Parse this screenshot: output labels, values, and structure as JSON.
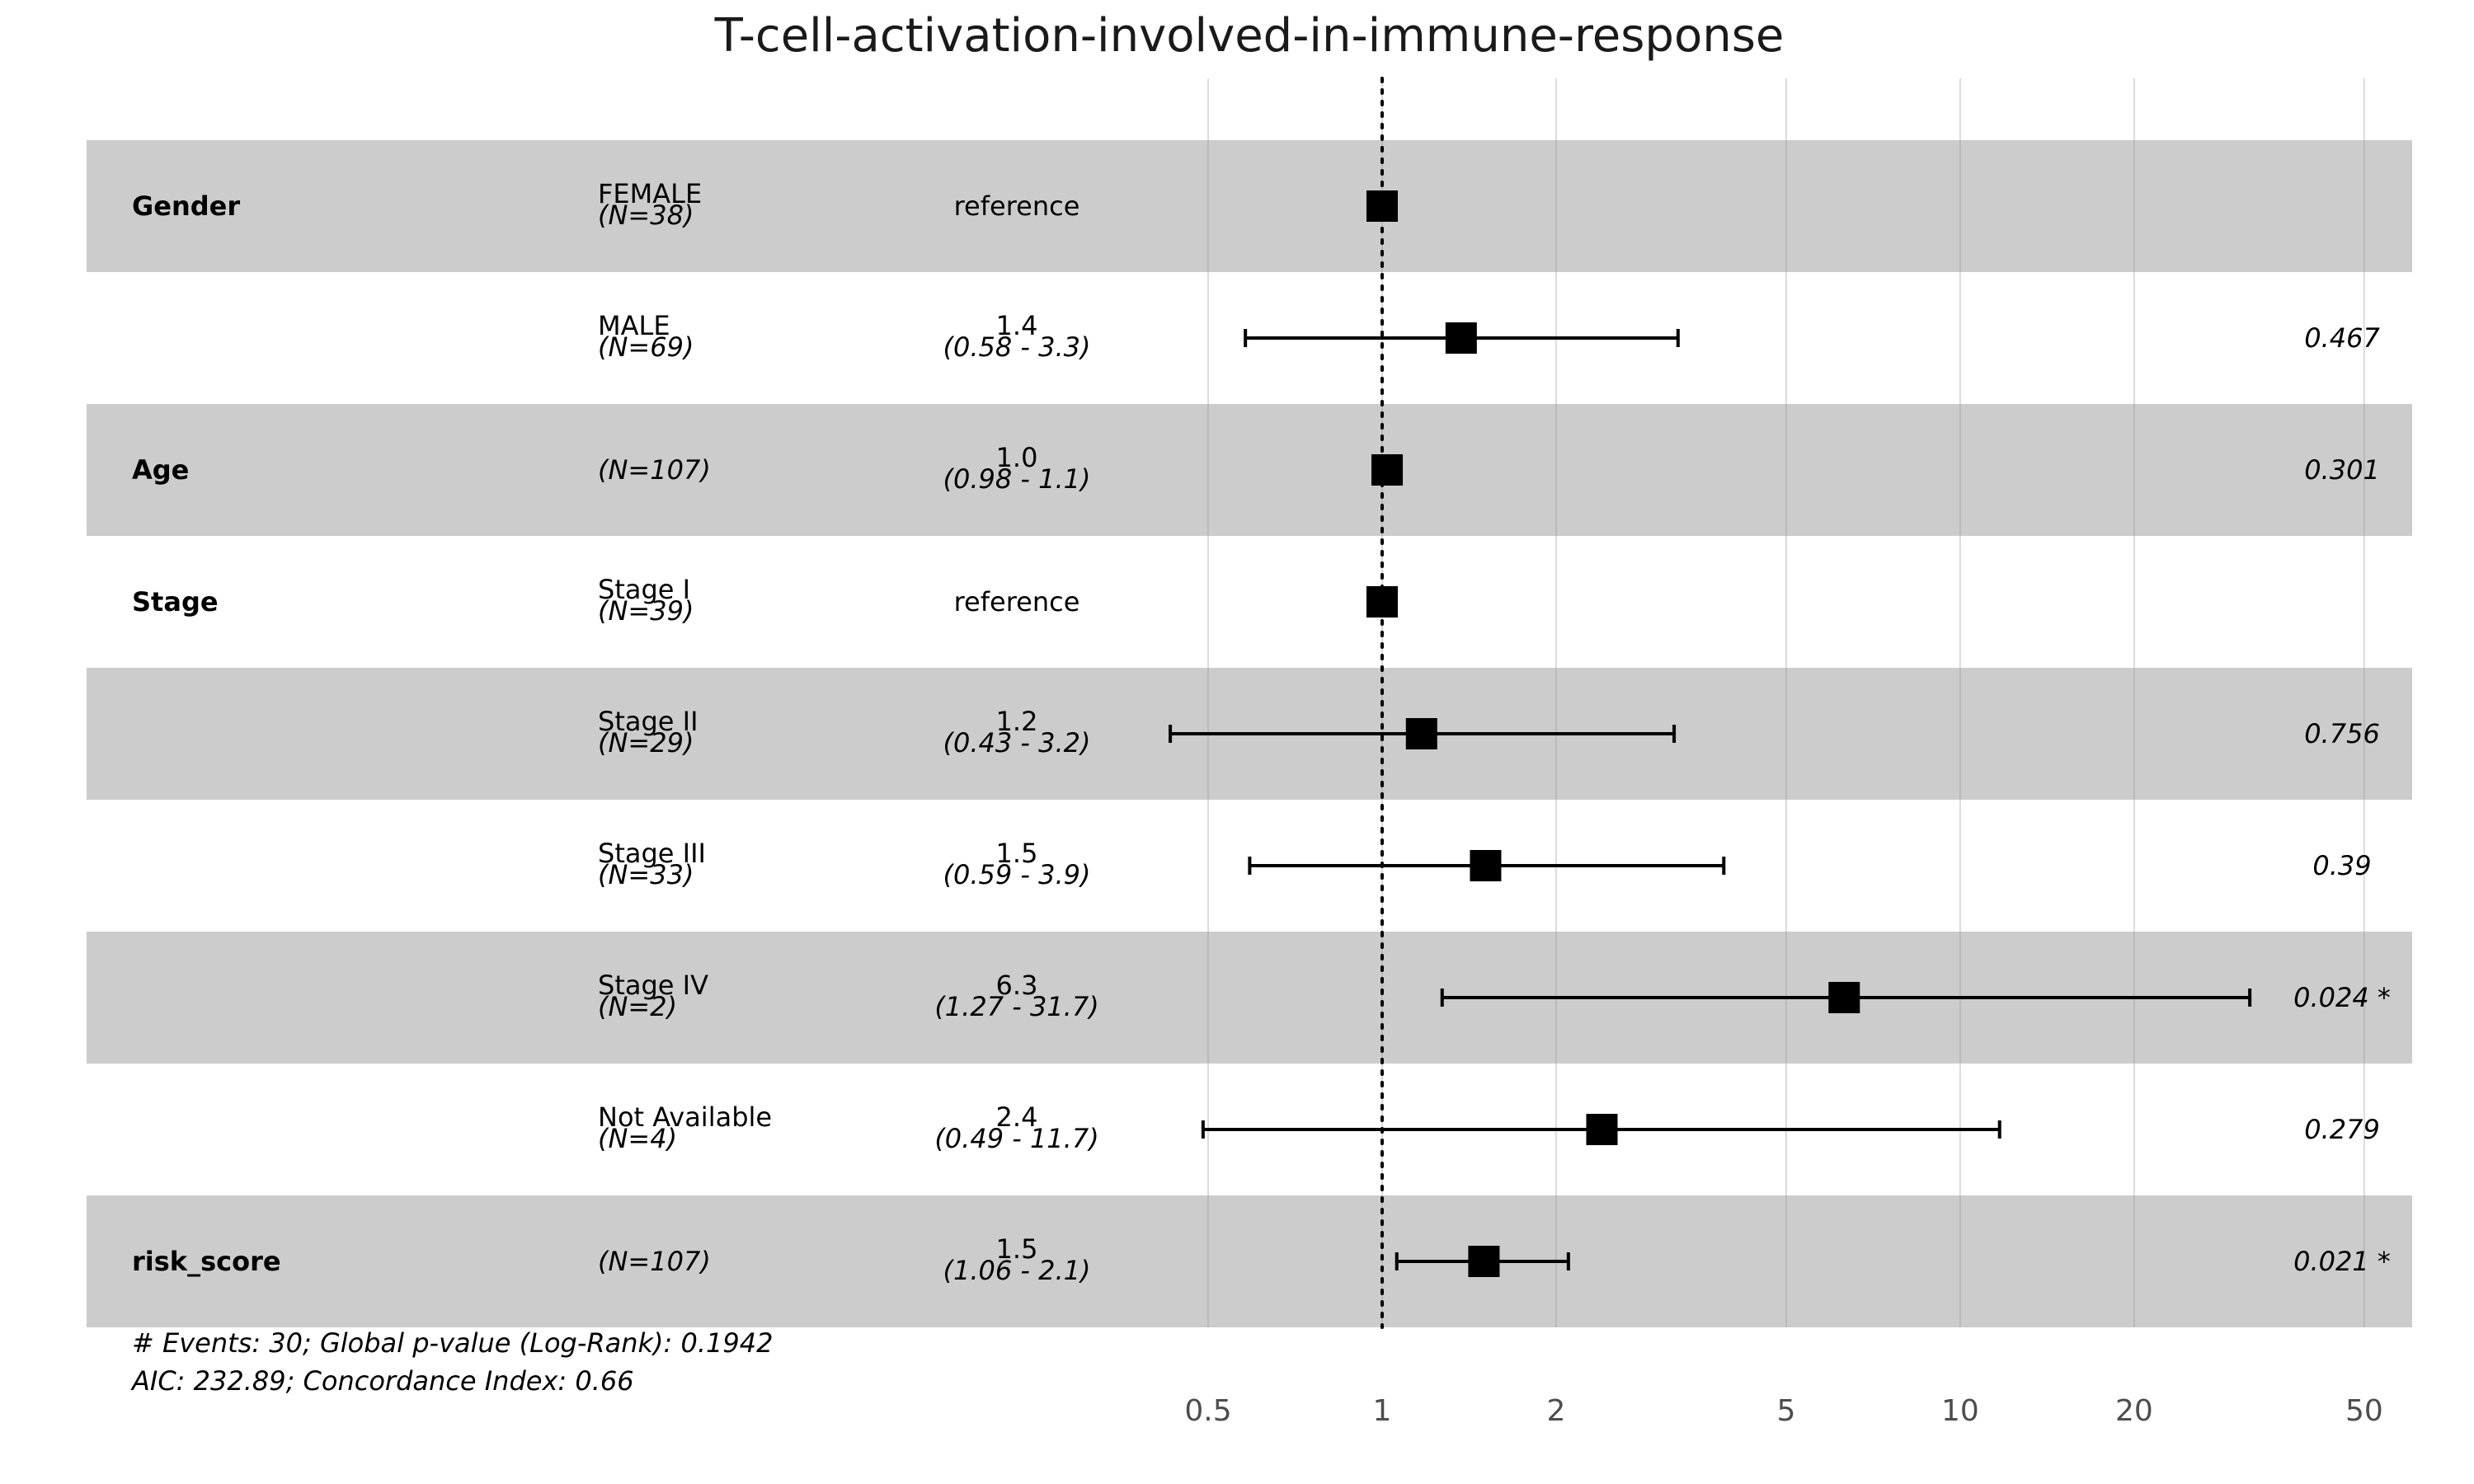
{
  "chart_data": {
    "type": "forest",
    "title": "T-cell-activation-involved-in-immune-response",
    "x_scale": "log",
    "xlim": [
      0.4,
      60
    ],
    "x_ticks": [
      0.5,
      1,
      2,
      5,
      10,
      20,
      50
    ],
    "x_tick_labels": [
      "0.5",
      "1",
      "2",
      "5",
      "10",
      "20",
      "50"
    ],
    "reference_line": 1,
    "grid": true,
    "row_shading": [
      "#cccccc",
      "#ffffff"
    ],
    "rows": [
      {
        "var": "Gender",
        "level": "FEMALE",
        "n": "(N=38)",
        "hr_text": "reference",
        "ci_text": "",
        "p_text": "",
        "hr": 1.0,
        "lower": null,
        "upper": null
      },
      {
        "var": "",
        "level": "MALE",
        "n": "(N=69)",
        "hr_text": "1.4",
        "ci_text": "(0.58 -  3.3)",
        "p_text": "0.467",
        "hr": 1.37,
        "lower": 0.58,
        "upper": 3.25
      },
      {
        "var": "Age",
        "level": "",
        "n": "(N=107)",
        "hr_text": "1.0",
        "ci_text": "(0.98 -  1.1)",
        "p_text": "0.301",
        "hr": 1.02,
        "lower": null,
        "upper": null
      },
      {
        "var": "Stage",
        "level": "Stage I",
        "n": "(N=39)",
        "hr_text": "reference",
        "ci_text": "",
        "p_text": "",
        "hr": 1.0,
        "lower": null,
        "upper": null
      },
      {
        "var": "",
        "level": "Stage II",
        "n": "(N=29)",
        "hr_text": "1.2",
        "ci_text": "(0.43 -  3.2)",
        "p_text": "0.756",
        "hr": 1.17,
        "lower": 0.43,
        "upper": 3.2
      },
      {
        "var": "",
        "level": "Stage III",
        "n": "(N=33)",
        "hr_text": "1.5",
        "ci_text": "(0.59 -  3.9)",
        "p_text": "0.39",
        "hr": 1.51,
        "lower": 0.59,
        "upper": 3.9
      },
      {
        "var": "",
        "level": "Stage IV",
        "n": "(N=2)",
        "hr_text": "6.3",
        "ci_text": "(1.27 - 31.7)",
        "p_text": "0.024 *",
        "hr": 6.3,
        "lower": 1.27,
        "upper": 31.7
      },
      {
        "var": "",
        "level": "Not Available",
        "n": "(N=4)",
        "hr_text": "2.4",
        "ci_text": "(0.49 - 11.7)",
        "p_text": "0.279",
        "hr": 2.4,
        "lower": 0.49,
        "upper": 11.7
      },
      {
        "var": "risk_score",
        "level": "",
        "n": "(N=107)",
        "hr_text": "1.5",
        "ci_text": "(1.06 -  2.1)",
        "p_text": "0.021 *",
        "hr": 1.5,
        "lower": 1.06,
        "upper": 2.1
      }
    ],
    "footer": [
      "# Events: 30; Global p-value (Log-Rank): 0.1942",
      "AIC: 232.89; Concordance Index: 0.66"
    ]
  }
}
